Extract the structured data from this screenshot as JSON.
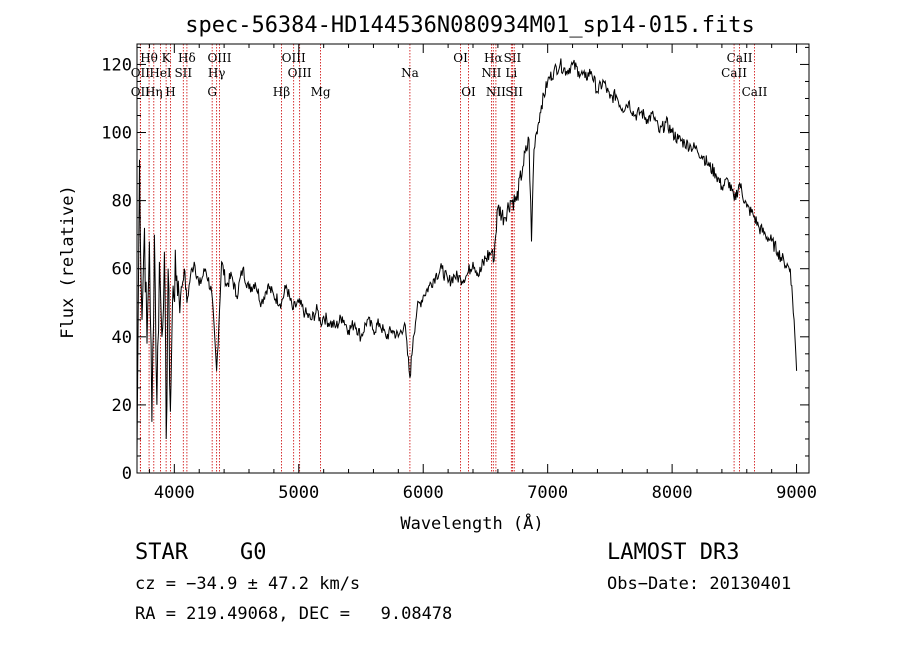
{
  "chart_data": {
    "type": "line",
    "title": "spec-56384-HD144536N080934M01_sp14-015.fits",
    "xlabel": "Wavelength (Å)",
    "ylabel": "Flux (relative)",
    "xlim": [
      3700,
      9100
    ],
    "ylim": [
      0,
      126
    ],
    "xticks": [
      4000,
      5000,
      6000,
      7000,
      8000,
      9000
    ],
    "yticks": [
      0,
      20,
      40,
      60,
      80,
      100,
      120
    ],
    "x_tick_labels": [
      "4000",
      "5000",
      "6000",
      "7000",
      "8000",
      "9000"
    ],
    "y_tick_labels": [
      "0",
      "20",
      "40",
      "60",
      "80",
      "100",
      "120"
    ],
    "series": [
      {
        "name": "spectrum",
        "x": [
          3700,
          3720,
          3740,
          3760,
          3780,
          3800,
          3820,
          3840,
          3860,
          3880,
          3900,
          3920,
          3935,
          3950,
          3968,
          3990,
          4020,
          4050,
          4080,
          4101,
          4130,
          4160,
          4200,
          4250,
          4300,
          4340,
          4380,
          4420,
          4460,
          4500,
          4550,
          4600,
          4650,
          4700,
          4750,
          4800,
          4861,
          4900,
          4950,
          5000,
          5050,
          5100,
          5150,
          5175,
          5200,
          5250,
          5300,
          5350,
          5400,
          5450,
          5500,
          5550,
          5600,
          5650,
          5700,
          5750,
          5800,
          5850,
          5893,
          5920,
          5950,
          6000,
          6050,
          6100,
          6150,
          6200,
          6250,
          6300,
          6350,
          6400,
          6450,
          6500,
          6550,
          6563,
          6600,
          6650,
          6700,
          6750,
          6800,
          6850,
          6870,
          6890,
          6910,
          6950,
          7000,
          7050,
          7100,
          7150,
          7200,
          7250,
          7300,
          7350,
          7400,
          7450,
          7500,
          7550,
          7600,
          7650,
          7700,
          7750,
          7800,
          7850,
          7900,
          7950,
          8000,
          8050,
          8100,
          8150,
          8200,
          8250,
          8300,
          8350,
          8400,
          8450,
          8500,
          8542,
          8600,
          8650,
          8700,
          8750,
          8800,
          8850,
          8900,
          8950,
          8980,
          9000
        ],
        "values": [
          5,
          92,
          45,
          72,
          38,
          68,
          15,
          70,
          20,
          62,
          40,
          65,
          10,
          60,
          18,
          55,
          58,
          52,
          60,
          50,
          58,
          62,
          55,
          60,
          53,
          30,
          62,
          55,
          58,
          52,
          60,
          54,
          56,
          50,
          55,
          52,
          50,
          55,
          48,
          50,
          47,
          45,
          48,
          44,
          46,
          44,
          43,
          46,
          42,
          44,
          40,
          45,
          42,
          44,
          40,
          42,
          40,
          44,
          28,
          40,
          48,
          52,
          55,
          58,
          60,
          56,
          58,
          57,
          58,
          62,
          58,
          63,
          65,
          62,
          78,
          75,
          80,
          80,
          90,
          98,
          68,
          95,
          100,
          108,
          115,
          118,
          120,
          118,
          120,
          118,
          116,
          118,
          112,
          115,
          110,
          111,
          107,
          109,
          105,
          106,
          104,
          105,
          100,
          103,
          100,
          98,
          97,
          96,
          95,
          93,
          90,
          88,
          84,
          86,
          80,
          85,
          78,
          76,
          72,
          70,
          68,
          65,
          62,
          60,
          45,
          30
        ]
      }
    ],
    "lines": [
      {
        "label": "Hθ",
        "wl": 3797,
        "row": 1
      },
      {
        "label": "OII",
        "wl": 3727,
        "row": 2
      },
      {
        "label": "OII",
        "wl": 3727,
        "row": 3
      },
      {
        "label": "K",
        "wl": 3934,
        "row": 1
      },
      {
        "label": "HeI",
        "wl": 3889,
        "row": 2
      },
      {
        "label": "Hη",
        "wl": 3835,
        "row": 3
      },
      {
        "label": "H",
        "wl": 3969,
        "row": 3
      },
      {
        "label": "SII",
        "wl": 4072,
        "row": 2
      },
      {
        "label": "Hδ",
        "wl": 4101,
        "row": 1
      },
      {
        "label": "OIII",
        "wl": 4363,
        "row": 1
      },
      {
        "label": "Hγ",
        "wl": 4340,
        "row": 2
      },
      {
        "label": "G",
        "wl": 4304,
        "row": 3
      },
      {
        "label": "Hβ",
        "wl": 4861,
        "row": 3
      },
      {
        "label": "OIII",
        "wl": 4959,
        "row": 1
      },
      {
        "label": "OIII",
        "wl": 5007,
        "row": 2
      },
      {
        "label": "Mg",
        "wl": 5175,
        "row": 3
      },
      {
        "label": "Na",
        "wl": 5893,
        "row": 2
      },
      {
        "label": "OI",
        "wl": 6300,
        "row": 1
      },
      {
        "label": "OI",
        "wl": 6364,
        "row": 3
      },
      {
        "label": "Hα",
        "wl": 6563,
        "row": 1
      },
      {
        "label": "NII",
        "wl": 6548,
        "row": 2
      },
      {
        "label": "NII",
        "wl": 6584,
        "row": 3
      },
      {
        "label": "SII",
        "wl": 6717,
        "row": 1
      },
      {
        "label": "Li",
        "wl": 6708,
        "row": 2
      },
      {
        "label": "SII",
        "wl": 6731,
        "row": 3
      },
      {
        "label": "CaII",
        "wl": 8542,
        "row": 1
      },
      {
        "label": "CaII",
        "wl": 8498,
        "row": 2
      },
      {
        "label": "CaII",
        "wl": 8662,
        "row": 3
      }
    ]
  },
  "info": {
    "object_type": "STAR",
    "subclass": "G0",
    "survey": "LAMOST DR3",
    "cz": "cz = −34.9 ± 47.2 km/s",
    "obs_date": "Obs−Date: 20130401",
    "coords": "RA = 219.49068, DEC =   9.08478"
  },
  "colors": {
    "spectrum": "#000000",
    "line_marker": "#cc0000",
    "axis": "#000000"
  }
}
